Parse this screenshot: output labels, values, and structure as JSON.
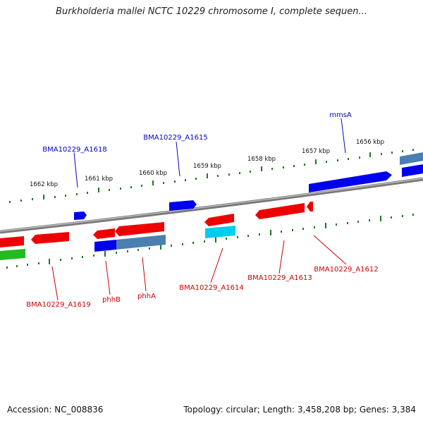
{
  "title": "Burkholderia mallei NCTC 10229 chromosome I, complete sequen...",
  "footer": {
    "accession": "Accession: NC_008836",
    "stats": "Topology: circular; Length: 3,458,208 bp; Genes: 3,384"
  },
  "colors": {
    "backbone": "#7a7a7a",
    "forward_strand_gene": "#0000ee",
    "forward_strand_gene_alt": "#4a7fb0",
    "reverse_strand_gene": "#ee0000",
    "reverse_strand_gene_alt": "#00ccee",
    "rna_gene": "#22bb22",
    "forward_label": "#0000cc",
    "reverse_label": "#cc0000",
    "ticks": "#1a7a1a"
  },
  "scale_labels": [
    "1662 kbp",
    "1661 kbp",
    "1660 kbp",
    "1659 kbp",
    "1658 kbp",
    "1657 kbp",
    "1656 kbp"
  ],
  "gene_labels": {
    "top": [
      "BMA10229_A1618",
      "BMA10229_A1615",
      "mmsA"
    ],
    "bottom": [
      "BMA10229_A1619",
      "phhB",
      "phhA",
      "BMA10229_A1614",
      "BMA10229_A1613",
      "BMA10229_A1612"
    ]
  }
}
